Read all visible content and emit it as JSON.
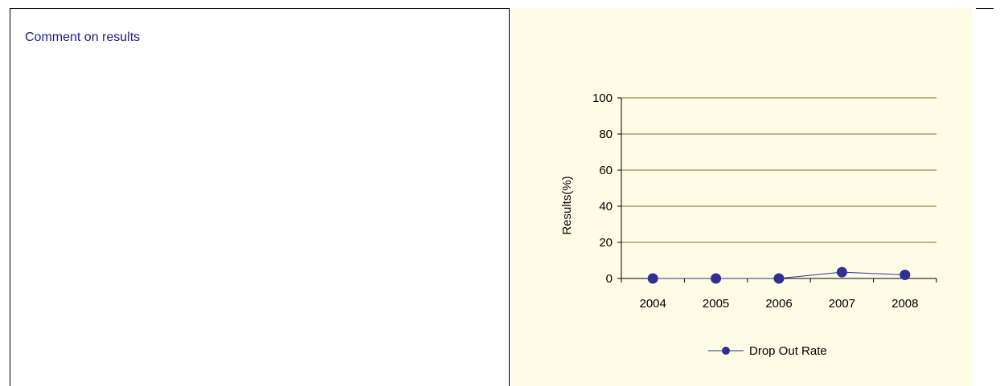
{
  "comment": {
    "title": "Comment on results"
  },
  "chart_data": {
    "type": "line",
    "categories": [
      "2004",
      "2005",
      "2006",
      "2007",
      "2008"
    ],
    "series": [
      {
        "name": "Drop Out Rate",
        "values": [
          0,
          0,
          0,
          3.5,
          2
        ]
      }
    ],
    "ylabel": "Results(%)",
    "ylim": [
      0,
      100
    ],
    "yticks": [
      "0",
      "20",
      "40",
      "60",
      "80",
      "100"
    ],
    "grid": true,
    "legend": "bottom",
    "colors": {
      "line": "#2e3192",
      "marker": "#2e3192",
      "grid": "#6b7a2a",
      "panel": "#fffce6"
    }
  }
}
